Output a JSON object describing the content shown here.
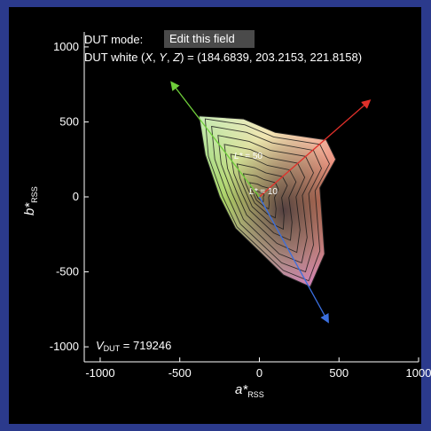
{
  "overlay": {
    "mode_label": "DUT mode:",
    "mode_field_value": "Edit this field",
    "white_prefix": "DUT white (",
    "white_x": "X",
    "white_sep1": ", ",
    "white_y": "Y",
    "white_sep2": ", ",
    "white_z": "Z",
    "white_suffix": ") = (184.6839, 203.2153, 221.8158)",
    "volume_v": "V",
    "volume_sub": "DUT",
    "volume_value": " = 719246",
    "contour_50_l": "L*",
    "contour_50_value": " = 50",
    "contour_10_l": "L*",
    "contour_10_value": " = 10"
  },
  "axes": {
    "x_title_main": "a*",
    "x_title_sub": "RSS",
    "y_title_main": "b*",
    "y_title_sub": "RSS"
  },
  "chart_data": {
    "type": "gamut-volume-projection",
    "xlim": [
      -1100,
      1000
    ],
    "ylim": [
      -1100,
      1100
    ],
    "xticks": [
      -1000,
      -500,
      0,
      500,
      1000
    ],
    "yticks": [
      1000,
      500,
      0,
      -500,
      -1000
    ],
    "gamut_outline": [
      [
        -380,
        540
      ],
      [
        -100,
        520
      ],
      [
        100,
        430
      ],
      [
        420,
        380
      ],
      [
        480,
        250
      ],
      [
        380,
        60
      ],
      [
        410,
        -380
      ],
      [
        320,
        -600
      ],
      [
        150,
        -520
      ],
      [
        -150,
        -210
      ],
      [
        -250,
        0
      ],
      [
        -340,
        280
      ]
    ],
    "contours": [
      {
        "L": 90,
        "points": [
          [
            -340,
            520
          ],
          [
            -90,
            480
          ],
          [
            90,
            400
          ],
          [
            380,
            350
          ],
          [
            440,
            220
          ],
          [
            350,
            40
          ],
          [
            380,
            -360
          ],
          [
            310,
            -560
          ],
          [
            150,
            -490
          ],
          [
            -140,
            -200
          ],
          [
            -230,
            0
          ],
          [
            -320,
            270
          ]
        ]
      },
      {
        "L": 80,
        "points": [
          [
            -300,
            470
          ],
          [
            -80,
            430
          ],
          [
            80,
            360
          ],
          [
            340,
            310
          ],
          [
            390,
            190
          ],
          [
            310,
            20
          ],
          [
            340,
            -320
          ],
          [
            290,
            -500
          ],
          [
            140,
            -440
          ],
          [
            -120,
            -180
          ],
          [
            -200,
            10
          ],
          [
            -280,
            250
          ]
        ]
      },
      {
        "L": 70,
        "points": [
          [
            -260,
            410
          ],
          [
            -65,
            370
          ],
          [
            70,
            310
          ],
          [
            290,
            270
          ],
          [
            340,
            160
          ],
          [
            270,
            10
          ],
          [
            300,
            -270
          ],
          [
            265,
            -440
          ],
          [
            125,
            -380
          ],
          [
            -100,
            -150
          ],
          [
            -170,
            20
          ],
          [
            -240,
            220
          ]
        ]
      },
      {
        "L": 60,
        "points": [
          [
            -220,
            350
          ],
          [
            -55,
            315
          ],
          [
            60,
            260
          ],
          [
            240,
            225
          ],
          [
            285,
            130
          ],
          [
            230,
            0
          ],
          [
            255,
            -220
          ],
          [
            235,
            -370
          ],
          [
            110,
            -310
          ],
          [
            -80,
            -120
          ],
          [
            -140,
            25
          ],
          [
            -200,
            190
          ]
        ]
      },
      {
        "L": 50,
        "points": [
          [
            -180,
            285
          ],
          [
            -40,
            255
          ],
          [
            50,
            210
          ],
          [
            190,
            180
          ],
          [
            230,
            100
          ],
          [
            185,
            -5
          ],
          [
            205,
            -170
          ],
          [
            195,
            -290
          ],
          [
            90,
            -240
          ],
          [
            -60,
            -90
          ],
          [
            -110,
            25
          ],
          [
            -160,
            155
          ]
        ]
      },
      {
        "L": 40,
        "points": [
          [
            -140,
            220
          ],
          [
            -30,
            195
          ],
          [
            40,
            160
          ],
          [
            145,
            135
          ],
          [
            175,
            75
          ],
          [
            140,
            -5
          ],
          [
            155,
            -125
          ],
          [
            150,
            -215
          ],
          [
            70,
            -175
          ],
          [
            -45,
            -65
          ],
          [
            -80,
            20
          ],
          [
            -120,
            120
          ]
        ]
      },
      {
        "L": 30,
        "points": [
          [
            -100,
            155
          ],
          [
            -20,
            140
          ],
          [
            30,
            115
          ],
          [
            100,
            95
          ],
          [
            120,
            50
          ],
          [
            95,
            -5
          ],
          [
            105,
            -80
          ],
          [
            100,
            -140
          ],
          [
            50,
            -115
          ],
          [
            -30,
            -40
          ],
          [
            -55,
            15
          ],
          [
            -85,
            85
          ]
        ]
      },
      {
        "L": 20,
        "points": [
          [
            -60,
            95
          ],
          [
            -12,
            85
          ],
          [
            18,
            70
          ],
          [
            60,
            58
          ],
          [
            72,
            30
          ],
          [
            58,
            -3
          ],
          [
            62,
            -45
          ],
          [
            58,
            -80
          ],
          [
            30,
            -65
          ],
          [
            -18,
            -22
          ],
          [
            -32,
            10
          ],
          [
            -50,
            50
          ]
        ]
      },
      {
        "L": 10,
        "points": [
          [
            -25,
            40
          ],
          [
            -5,
            35
          ],
          [
            8,
            28
          ],
          [
            25,
            24
          ],
          [
            30,
            12
          ],
          [
            24,
            0
          ],
          [
            26,
            -18
          ],
          [
            24,
            -32
          ],
          [
            12,
            -26
          ],
          [
            -8,
            -9
          ],
          [
            -14,
            4
          ],
          [
            -21,
            21
          ]
        ]
      }
    ],
    "primary_axes": [
      {
        "name": "red",
        "color": "#e0302a",
        "from": [
          0,
          0
        ],
        "to": [
          690,
          640
        ]
      },
      {
        "name": "green",
        "color": "#6fce3a",
        "from": [
          0,
          0
        ],
        "to": [
          -550,
          760
        ]
      },
      {
        "name": "blue",
        "color": "#3a6fe0",
        "from": [
          0,
          0
        ],
        "to": [
          430,
          -830
        ]
      }
    ],
    "labeled_contours": [
      {
        "L": 50,
        "at": [
          -110,
          230
        ]
      },
      {
        "L": 10,
        "at": [
          0,
          0
        ]
      }
    ]
  },
  "colors": {
    "background": "#2b3a8c",
    "plot_bg": "#000000",
    "axis": "#ffffff",
    "contour": "#1a1a1a",
    "field_bg": "#4a4a4a"
  }
}
